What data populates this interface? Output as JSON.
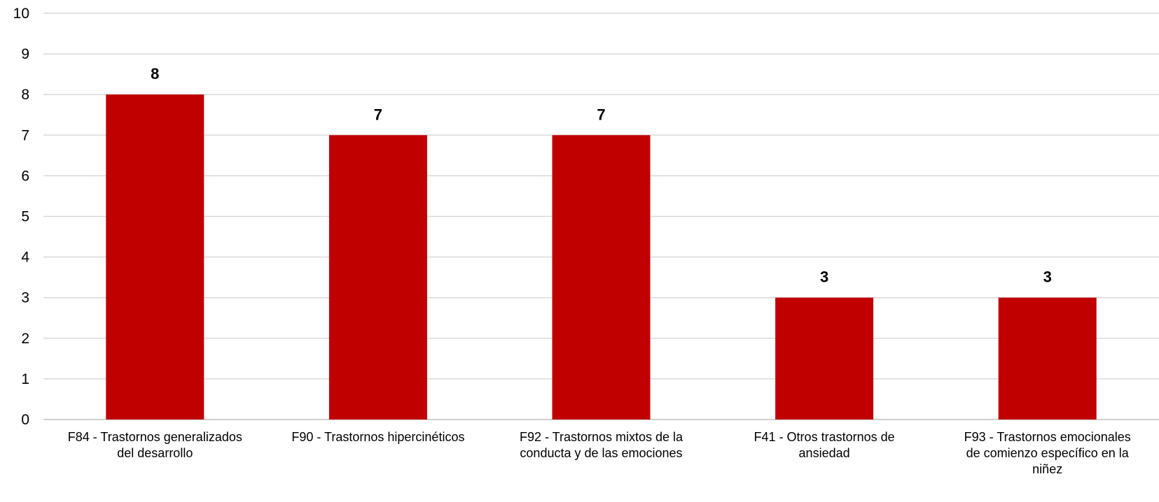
{
  "chart_data": {
    "type": "bar",
    "categories": [
      [
        "F84  - Trastornos generalizados",
        "del desarrollo"
      ],
      [
        "F90  - Trastornos hipercinéticos"
      ],
      [
        "F92  - Trastornos mixtos de la",
        "conducta y de las emociones"
      ],
      [
        "F41  - Otros trastornos de",
        "ansiedad"
      ],
      [
        "F93  - Trastornos emocionales",
        "de comienzo específico en la",
        "niñez"
      ]
    ],
    "values": [
      8,
      7,
      7,
      3,
      3
    ],
    "data_labels": [
      "8",
      "7",
      "7",
      "3",
      "3"
    ],
    "y_ticks": [
      "0",
      "1",
      "2",
      "3",
      "4",
      "5",
      "6",
      "7",
      "8",
      "9",
      "10"
    ],
    "ylim": [
      0,
      10
    ],
    "grid": true,
    "bar_color": "#c00000",
    "title": "",
    "xlabel": "",
    "ylabel": ""
  }
}
